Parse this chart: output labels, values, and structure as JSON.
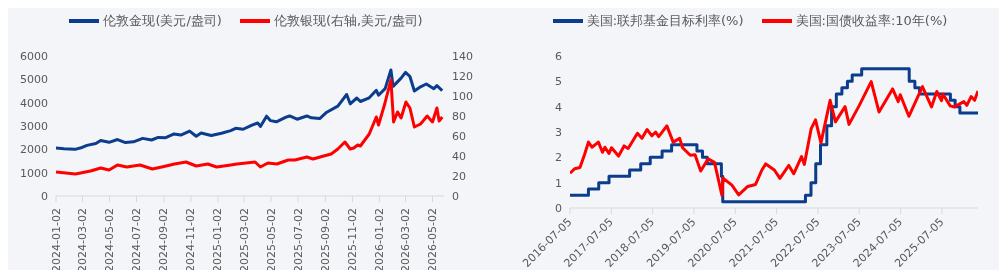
{
  "chart_data": [
    {
      "type": "line",
      "legend": "top",
      "grid": false,
      "xlim": [
        "2024-01-02",
        "2026-05-28"
      ],
      "xticks": [
        "2024-01-02",
        "2024-03-02",
        "2024-05-02",
        "2024-07-02",
        "2024-09-02",
        "2024-11-02",
        "2025-01-02",
        "2025-03-02",
        "2025-05-02",
        "2025-07-02",
        "2025-09-02",
        "2025-11-02",
        "2026-01-02",
        "2026-03-02",
        "2026-05-02"
      ],
      "ylim": [
        0,
        6000
      ],
      "yticks": [
        0,
        1000,
        2000,
        3000,
        4000,
        5000,
        6000
      ],
      "y2lim": [
        0,
        140
      ],
      "y2ticks": [
        0,
        20,
        40,
        60,
        80,
        100,
        120,
        140
      ],
      "series": [
        {
          "name": "伦敦金现(美元/盎司)",
          "color": "#0b3d8c",
          "x": [
            "2024-01-02",
            "2024-01-20",
            "2024-02-14",
            "2024-03-01",
            "2024-03-12",
            "2024-04-01",
            "2024-04-12",
            "2024-05-01",
            "2024-05-20",
            "2024-06-07",
            "2024-06-25",
            "2024-07-16",
            "2024-08-05",
            "2024-08-20",
            "2024-09-06",
            "2024-09-25",
            "2024-10-10",
            "2024-10-30",
            "2024-11-14",
            "2024-11-25",
            "2024-12-18",
            "2025-01-10",
            "2025-01-31",
            "2025-02-11",
            "2025-02-28",
            "2025-03-20",
            "2025-04-02",
            "2025-04-08",
            "2025-04-22",
            "2025-05-01",
            "2025-05-14",
            "2025-06-05",
            "2025-06-13",
            "2025-06-30",
            "2025-07-22",
            "2025-08-01",
            "2025-08-20",
            "2025-09-05",
            "2025-09-30",
            "2025-10-20",
            "2025-10-28",
            "2025-11-12",
            "2025-11-20",
            "2025-12-10",
            "2025-12-26",
            "2025-12-31",
            "2026-01-15",
            "2026-01-28",
            "2026-02-02",
            "2026-02-20",
            "2026-03-02",
            "2026-03-12",
            "2026-03-22",
            "2026-04-05",
            "2026-04-18",
            "2026-05-05",
            "2026-05-12",
            "2026-05-24"
          ],
          "values": [
            2060,
            2030,
            2000,
            2080,
            2170,
            2250,
            2380,
            2300,
            2420,
            2290,
            2320,
            2470,
            2400,
            2510,
            2500,
            2660,
            2610,
            2780,
            2560,
            2700,
            2590,
            2690,
            2800,
            2900,
            2860,
            3040,
            3130,
            2980,
            3420,
            3230,
            3180,
            3380,
            3430,
            3290,
            3430,
            3350,
            3320,
            3590,
            3850,
            4350,
            3950,
            4200,
            4050,
            4210,
            4530,
            4320,
            4600,
            5400,
            4700,
            5050,
            5300,
            5120,
            4500,
            4680,
            4800,
            4600,
            4730,
            4520
          ]
        },
        {
          "name": "伦敦银现(右轴,美元/盎司)",
          "color": "#ff0000",
          "axis": "y2",
          "x": [
            "2024-01-02",
            "2024-02-15",
            "2024-03-20",
            "2024-04-12",
            "2024-05-01",
            "2024-05-20",
            "2024-06-10",
            "2024-07-10",
            "2024-08-07",
            "2024-08-28",
            "2024-09-26",
            "2024-10-22",
            "2024-11-14",
            "2024-12-10",
            "2024-12-30",
            "2025-01-31",
            "2025-02-14",
            "2025-03-27",
            "2025-04-08",
            "2025-04-25",
            "2025-05-15",
            "2025-06-10",
            "2025-06-25",
            "2025-07-22",
            "2025-08-05",
            "2025-08-29",
            "2025-09-15",
            "2025-09-30",
            "2025-10-16",
            "2025-10-28",
            "2025-11-05",
            "2025-11-14",
            "2025-11-20",
            "2025-12-10",
            "2025-12-26",
            "2025-12-31",
            "2026-01-14",
            "2026-01-28",
            "2026-02-03",
            "2026-02-12",
            "2026-02-20",
            "2026-03-03",
            "2026-03-12",
            "2026-03-22",
            "2026-04-05",
            "2026-04-20",
            "2026-05-02",
            "2026-05-12",
            "2026-05-17",
            "2026-05-24"
          ],
          "values": [
            24,
            22,
            25,
            28,
            26,
            31,
            29,
            31,
            27,
            29,
            32,
            34,
            30,
            32,
            29,
            31,
            32,
            34,
            29,
            33,
            32,
            36,
            36,
            39,
            37,
            40,
            42,
            47,
            54,
            47,
            48,
            51,
            50,
            62,
            79,
            71,
            92,
            116,
            74,
            84,
            78,
            94,
            88,
            69,
            72,
            80,
            74,
            88,
            75,
            79
          ]
        }
      ]
    },
    {
      "type": "line",
      "legend": "top",
      "grid": false,
      "xlim": [
        "2016-07-05",
        "2026-05-20"
      ],
      "xticks": [
        "2016-07-05",
        "2017-07-05",
        "2018-07-05",
        "2019-07-05",
        "2020-07-05",
        "2021-07-05",
        "2022-07-05",
        "2023-07-05",
        "2024-07-05",
        "2025-07-05"
      ],
      "ylim": [
        0,
        6
      ],
      "yticks": [
        0,
        1,
        2,
        3,
        4,
        5,
        6
      ],
      "series": [
        {
          "name": "美国:联邦基金目标利率(%)",
          "color": "#0b3d8c",
          "type": "step",
          "x": [
            "2016-07-05",
            "2016-12-15",
            "2017-03-16",
            "2017-06-15",
            "2017-12-14",
            "2018-03-22",
            "2018-06-14",
            "2018-09-27",
            "2018-12-20",
            "2019-08-01",
            "2019-09-19",
            "2019-10-31",
            "2020-03-04",
            "2020-03-16",
            "2022-03-17",
            "2022-05-05",
            "2022-06-16",
            "2022-07-28",
            "2022-09-22",
            "2022-11-03",
            "2022-12-15",
            "2023-02-02",
            "2023-03-23",
            "2023-05-04",
            "2023-07-27",
            "2024-09-19",
            "2024-11-08",
            "2024-12-19",
            "2025-09-18",
            "2025-10-30",
            "2025-12-11",
            "2026-05-20"
          ],
          "values": [
            0.5,
            0.75,
            1.0,
            1.25,
            1.5,
            1.75,
            2.0,
            2.25,
            2.5,
            2.25,
            2.0,
            1.75,
            1.25,
            0.25,
            0.5,
            1.0,
            1.75,
            2.5,
            3.25,
            4.0,
            4.5,
            4.75,
            5.0,
            5.25,
            5.5,
            5.0,
            4.75,
            4.5,
            4.25,
            4.0,
            3.75,
            3.75
          ]
        },
        {
          "name": "美国:国债收益率:10年(%)",
          "color": "#ff0000",
          "type": "line",
          "x": [
            "2016-07-05",
            "2016-08-15",
            "2016-10-01",
            "2016-11-10",
            "2016-12-15",
            "2017-01-15",
            "2017-03-13",
            "2017-04-18",
            "2017-05-10",
            "2017-06-14",
            "2017-07-07",
            "2017-09-07",
            "2017-10-26",
            "2017-12-01",
            "2018-02-21",
            "2018-04-02",
            "2018-05-17",
            "2018-06-29",
            "2018-08-01",
            "2018-08-28",
            "2018-11-08",
            "2019-01-03",
            "2019-03-01",
            "2019-03-27",
            "2019-06-03",
            "2019-07-15",
            "2019-09-03",
            "2019-11-08",
            "2020-01-03",
            "2020-03-09",
            "2020-03-18",
            "2020-06-05",
            "2020-08-04",
            "2020-10-23",
            "2020-12-31",
            "2021-02-25",
            "2021-03-31",
            "2021-06-15",
            "2021-08-03",
            "2021-10-21",
            "2021-12-03",
            "2022-02-10",
            "2022-03-07",
            "2022-05-06",
            "2022-06-14",
            "2022-08-01",
            "2022-10-21",
            "2022-12-07",
            "2023-03-02",
            "2023-04-06",
            "2023-07-06",
            "2023-10-19",
            "2023-12-27",
            "2024-04-25",
            "2024-06-14",
            "2024-07-02",
            "2024-09-16",
            "2025-01-14",
            "2025-04-04",
            "2025-05-21",
            "2025-07-01",
            "2025-07-15",
            "2025-09-16",
            "2025-10-24",
            "2026-01-15",
            "2026-02-10",
            "2026-03-20",
            "2026-04-20",
            "2026-05-20"
          ],
          "values": [
            1.37,
            1.55,
            1.6,
            2.1,
            2.6,
            2.4,
            2.6,
            2.2,
            2.4,
            2.15,
            2.38,
            2.05,
            2.45,
            2.35,
            2.95,
            2.75,
            3.1,
            2.85,
            3.0,
            2.82,
            3.24,
            2.6,
            2.75,
            2.38,
            2.08,
            2.1,
            1.46,
            1.94,
            1.8,
            0.5,
            1.18,
            0.9,
            0.52,
            0.85,
            0.93,
            1.5,
            1.74,
            1.5,
            1.17,
            1.68,
            1.35,
            2.03,
            1.72,
            3.12,
            3.48,
            2.57,
            4.25,
            3.4,
            4.0,
            3.3,
            4.05,
            4.99,
            3.79,
            4.7,
            4.2,
            4.47,
            3.62,
            4.79,
            3.99,
            4.6,
            4.24,
            4.49,
            4.03,
            3.99,
            4.2,
            4.05,
            4.4,
            4.25,
            4.62
          ]
        }
      ]
    }
  ]
}
